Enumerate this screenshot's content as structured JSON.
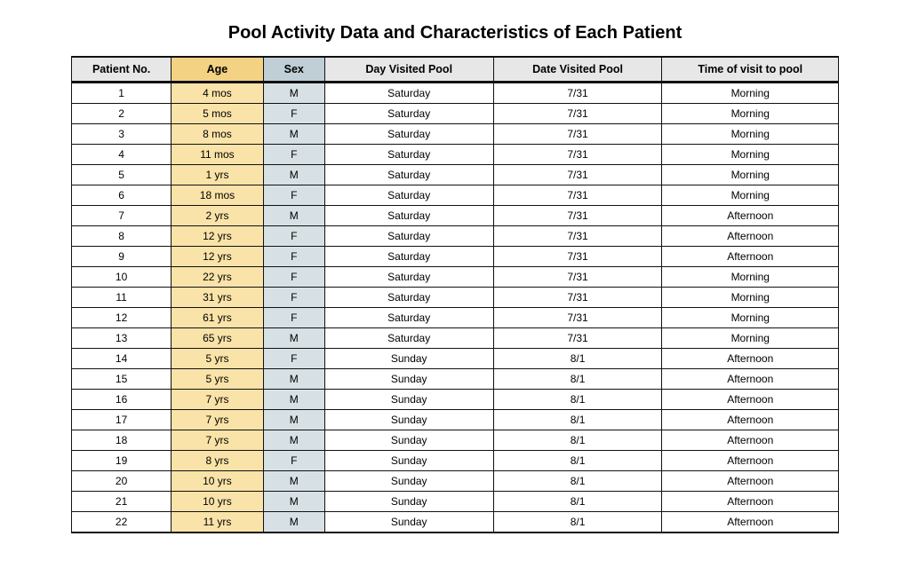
{
  "title": "Pool Activity Data and Characteristics of Each Patient",
  "table": {
    "columns": [
      {
        "key": "no",
        "label": "Patient No.",
        "header_bg": "#e7e7e7",
        "cell_bg": "#ffffff",
        "width_pct": 13
      },
      {
        "key": "age",
        "label": "Age",
        "header_bg": "#f3d283",
        "cell_bg": "#f9e3a8",
        "width_pct": 12
      },
      {
        "key": "sex",
        "label": "Sex",
        "header_bg": "#bfcfd5",
        "cell_bg": "#d7e1e5",
        "width_pct": 8
      },
      {
        "key": "day",
        "label": "Day Visited Pool",
        "header_bg": "#e7e7e7",
        "cell_bg": "#ffffff",
        "width_pct": 22
      },
      {
        "key": "date",
        "label": "Date Visited Pool",
        "header_bg": "#e7e7e7",
        "cell_bg": "#ffffff",
        "width_pct": 22
      },
      {
        "key": "time",
        "label": "Time of visit to pool",
        "header_bg": "#e7e7e7",
        "cell_bg": "#ffffff",
        "width_pct": 23
      }
    ],
    "rows": [
      {
        "no": "1",
        "age": "4 mos",
        "sex": "M",
        "day": "Saturday",
        "date": "7/31",
        "time": "Morning"
      },
      {
        "no": "2",
        "age": "5 mos",
        "sex": "F",
        "day": "Saturday",
        "date": "7/31",
        "time": "Morning"
      },
      {
        "no": "3",
        "age": "8 mos",
        "sex": "M",
        "day": "Saturday",
        "date": "7/31",
        "time": "Morning"
      },
      {
        "no": "4",
        "age": "11 mos",
        "sex": "F",
        "day": "Saturday",
        "date": "7/31",
        "time": "Morning"
      },
      {
        "no": "5",
        "age": "1 yrs",
        "sex": "M",
        "day": "Saturday",
        "date": "7/31",
        "time": "Morning"
      },
      {
        "no": "6",
        "age": "18 mos",
        "sex": "F",
        "day": "Saturday",
        "date": "7/31",
        "time": "Morning"
      },
      {
        "no": "7",
        "age": "2 yrs",
        "sex": "M",
        "day": "Saturday",
        "date": "7/31",
        "time": "Afternoon"
      },
      {
        "no": "8",
        "age": "12 yrs",
        "sex": "F",
        "day": "Saturday",
        "date": "7/31",
        "time": "Afternoon"
      },
      {
        "no": "9",
        "age": "12 yrs",
        "sex": "F",
        "day": "Saturday",
        "date": "7/31",
        "time": "Afternoon"
      },
      {
        "no": "10",
        "age": "22 yrs",
        "sex": "F",
        "day": "Saturday",
        "date": "7/31",
        "time": "Morning"
      },
      {
        "no": "11",
        "age": "31 yrs",
        "sex": "F",
        "day": "Saturday",
        "date": "7/31",
        "time": "Morning"
      },
      {
        "no": "12",
        "age": "61 yrs",
        "sex": "F",
        "day": "Saturday",
        "date": "7/31",
        "time": "Morning"
      },
      {
        "no": "13",
        "age": "65 yrs",
        "sex": "M",
        "day": "Saturday",
        "date": "7/31",
        "time": "Morning"
      },
      {
        "no": "14",
        "age": "5 yrs",
        "sex": "F",
        "day": "Sunday",
        "date": "8/1",
        "time": "Afternoon"
      },
      {
        "no": "15",
        "age": "5 yrs",
        "sex": "M",
        "day": "Sunday",
        "date": "8/1",
        "time": "Afternoon"
      },
      {
        "no": "16",
        "age": "7 yrs",
        "sex": "M",
        "day": "Sunday",
        "date": "8/1",
        "time": "Afternoon"
      },
      {
        "no": "17",
        "age": "7 yrs",
        "sex": "M",
        "day": "Sunday",
        "date": "8/1",
        "time": "Afternoon"
      },
      {
        "no": "18",
        "age": "7 yrs",
        "sex": "M",
        "day": "Sunday",
        "date": "8/1",
        "time": "Afternoon"
      },
      {
        "no": "19",
        "age": "8 yrs",
        "sex": "F",
        "day": "Sunday",
        "date": "8/1",
        "time": "Afternoon"
      },
      {
        "no": "20",
        "age": "10 yrs",
        "sex": "M",
        "day": "Sunday",
        "date": "8/1",
        "time": "Afternoon"
      },
      {
        "no": "21",
        "age": "10 yrs",
        "sex": "M",
        "day": "Sunday",
        "date": "8/1",
        "time": "Afternoon"
      },
      {
        "no": "22",
        "age": "11 yrs",
        "sex": "M",
        "day": "Sunday",
        "date": "8/1",
        "time": "Afternoon"
      }
    ],
    "border_color": "#111111",
    "font_size_body_pt": 12,
    "font_size_header_pt": 12.5
  }
}
